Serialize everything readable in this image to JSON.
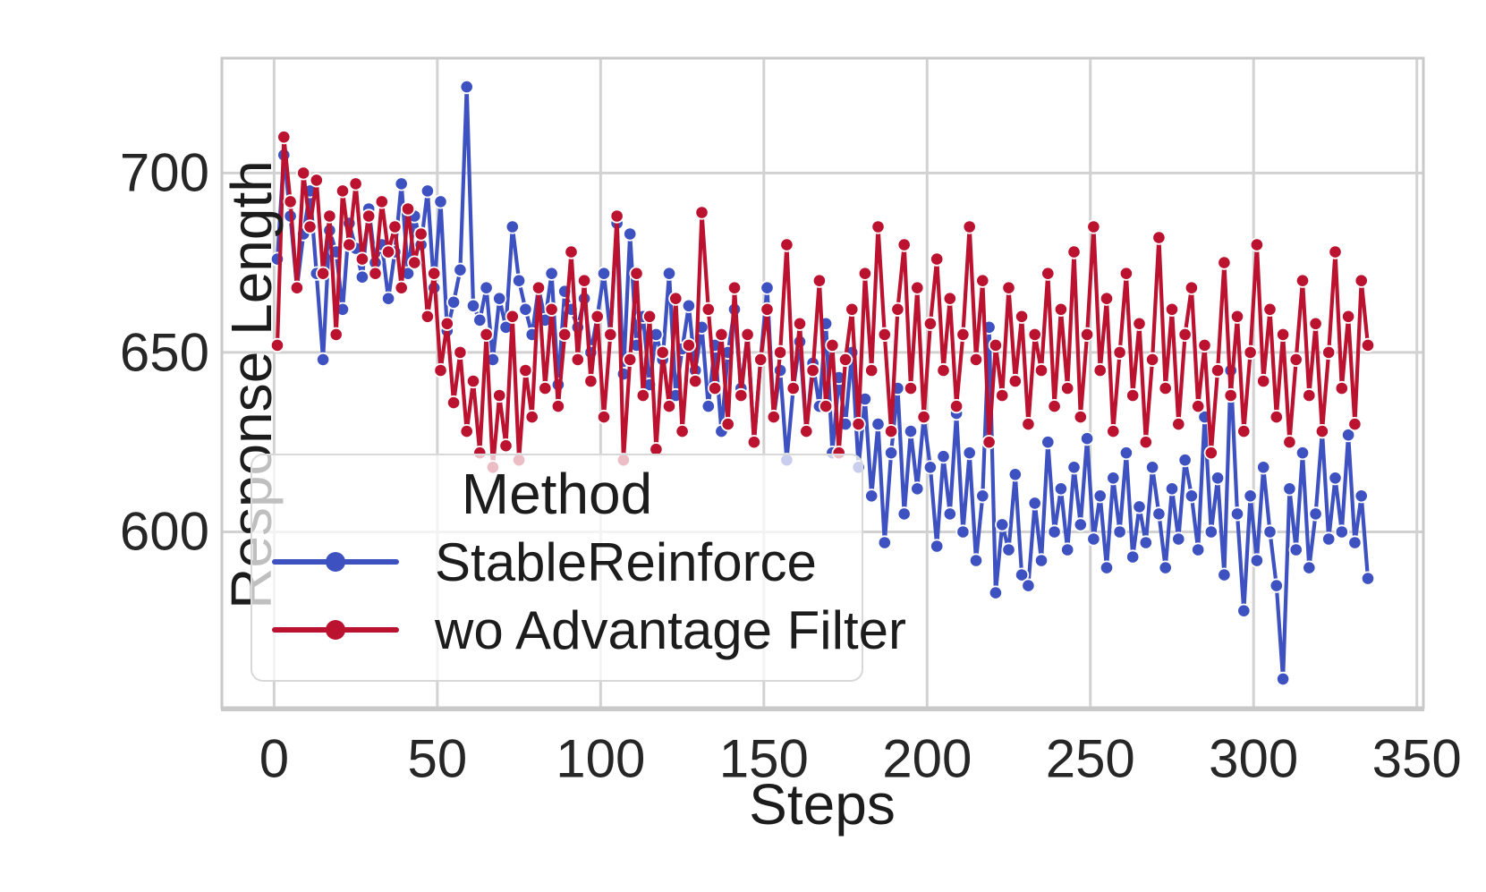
{
  "figure": {
    "background": "#ffffff",
    "text_color": "#262626",
    "grid_color": "#d2d2d2",
    "spine_color": "#c9c9c9",
    "marker_edge_color": "#ffffff"
  },
  "chart_data": {
    "type": "line",
    "title": "",
    "xlabel": "Steps",
    "ylabel": "Response Length",
    "xlim": [
      -16,
      352
    ],
    "ylim": [
      551,
      732
    ],
    "xticks": [
      0,
      50,
      100,
      150,
      200,
      250,
      300,
      350
    ],
    "yticks": [
      600,
      650,
      700
    ],
    "grid": true,
    "legend": {
      "title": "Method",
      "position": "lower left"
    },
    "x": [
      1,
      3,
      5,
      7,
      9,
      11,
      13,
      15,
      17,
      19,
      21,
      23,
      25,
      27,
      29,
      31,
      33,
      35,
      37,
      39,
      41,
      43,
      45,
      47,
      49,
      51,
      53,
      55,
      57,
      59,
      61,
      63,
      65,
      67,
      69,
      71,
      73,
      75,
      77,
      79,
      81,
      83,
      85,
      87,
      89,
      91,
      93,
      95,
      97,
      99,
      101,
      103,
      105,
      107,
      109,
      111,
      113,
      115,
      117,
      119,
      121,
      123,
      125,
      127,
      129,
      131,
      133,
      135,
      137,
      139,
      141,
      143,
      145,
      147,
      149,
      151,
      153,
      155,
      157,
      159,
      161,
      163,
      165,
      167,
      169,
      171,
      173,
      175,
      177,
      179,
      181,
      183,
      185,
      187,
      189,
      191,
      193,
      195,
      197,
      199,
      201,
      203,
      205,
      207,
      209,
      211,
      213,
      215,
      217,
      219,
      221,
      223,
      225,
      227,
      229,
      231,
      233,
      235,
      237,
      239,
      241,
      243,
      245,
      247,
      249,
      251,
      253,
      255,
      257,
      259,
      261,
      263,
      265,
      267,
      269,
      271,
      273,
      275,
      277,
      279,
      281,
      283,
      285,
      287,
      289,
      291,
      293,
      295,
      297,
      299,
      301,
      303,
      305,
      307,
      309,
      311,
      313,
      315,
      317,
      319,
      321,
      323,
      325,
      327,
      329,
      331,
      333,
      335
    ],
    "series": [
      {
        "name": "StableReinforce",
        "color": "#3e51c1",
        "values": [
          676,
          705,
          688,
          668,
          683,
          695,
          672,
          648,
          684,
          678,
          662,
          686,
          679,
          671,
          690,
          675,
          680,
          665,
          678,
          697,
          672,
          688,
          680,
          695,
          668,
          692,
          656,
          664,
          673,
          724,
          663,
          659,
          668,
          648,
          665,
          657,
          685,
          670,
          662,
          655,
          668,
          659,
          672,
          641,
          667,
          662,
          657,
          665,
          650,
          660,
          672,
          655,
          686,
          644,
          683,
          652,
          660,
          641,
          655,
          648,
          672,
          638,
          651,
          663,
          645,
          657,
          635,
          652,
          628,
          650,
          662,
          640,
          655,
          625,
          648,
          668,
          632,
          645,
          620,
          640,
          653,
          628,
          647,
          635,
          658,
          622,
          643,
          630,
          650,
          618,
          637,
          610,
          630,
          597,
          622,
          640,
          605,
          628,
          612,
          632,
          618,
          596,
          621,
          605,
          633,
          600,
          622,
          592,
          610,
          657,
          583,
          602,
          595,
          616,
          588,
          585,
          608,
          592,
          625,
          600,
          612,
          595,
          618,
          602,
          626,
          598,
          610,
          590,
          615,
          600,
          622,
          593,
          607,
          597,
          618,
          605,
          590,
          612,
          598,
          620,
          610,
          595,
          632,
          600,
          615,
          588,
          645,
          605,
          578,
          610,
          592,
          618,
          600,
          585,
          559,
          612,
          595,
          622,
          590,
          605,
          628,
          598,
          615,
          600,
          627,
          597,
          610,
          587
        ]
      },
      {
        "name": "wo Advantage Filter",
        "color": "#bb1230",
        "values": [
          652,
          710,
          692,
          668,
          700,
          685,
          698,
          672,
          688,
          655,
          695,
          680,
          697,
          676,
          688,
          672,
          692,
          678,
          685,
          668,
          690,
          675,
          683,
          660,
          672,
          645,
          658,
          636,
          650,
          628,
          642,
          622,
          655,
          618,
          638,
          624,
          660,
          620,
          645,
          632,
          668,
          640,
          662,
          635,
          655,
          678,
          648,
          670,
          642,
          660,
          632,
          655,
          688,
          620,
          648,
          672,
          638,
          660,
          623,
          650,
          635,
          665,
          628,
          652,
          642,
          689,
          662,
          640,
          655,
          630,
          668,
          638,
          655,
          625,
          648,
          662,
          632,
          650,
          680,
          640,
          658,
          628,
          645,
          670,
          635,
          652,
          622,
          648,
          662,
          630,
          672,
          645,
          685,
          655,
          628,
          662,
          680,
          640,
          668,
          632,
          658,
          676,
          645,
          665,
          635,
          655,
          685,
          648,
          670,
          625,
          652,
          638,
          668,
          642,
          660,
          630,
          655,
          645,
          672,
          635,
          662,
          640,
          678,
          632,
          655,
          685,
          645,
          665,
          628,
          650,
          672,
          638,
          658,
          625,
          648,
          682,
          640,
          662,
          630,
          655,
          668,
          635,
          652,
          622,
          645,
          675,
          638,
          660,
          628,
          650,
          680,
          642,
          662,
          632,
          655,
          625,
          648,
          670,
          638,
          658,
          628,
          650,
          678,
          640,
          660,
          630,
          670,
          652
        ]
      }
    ]
  }
}
